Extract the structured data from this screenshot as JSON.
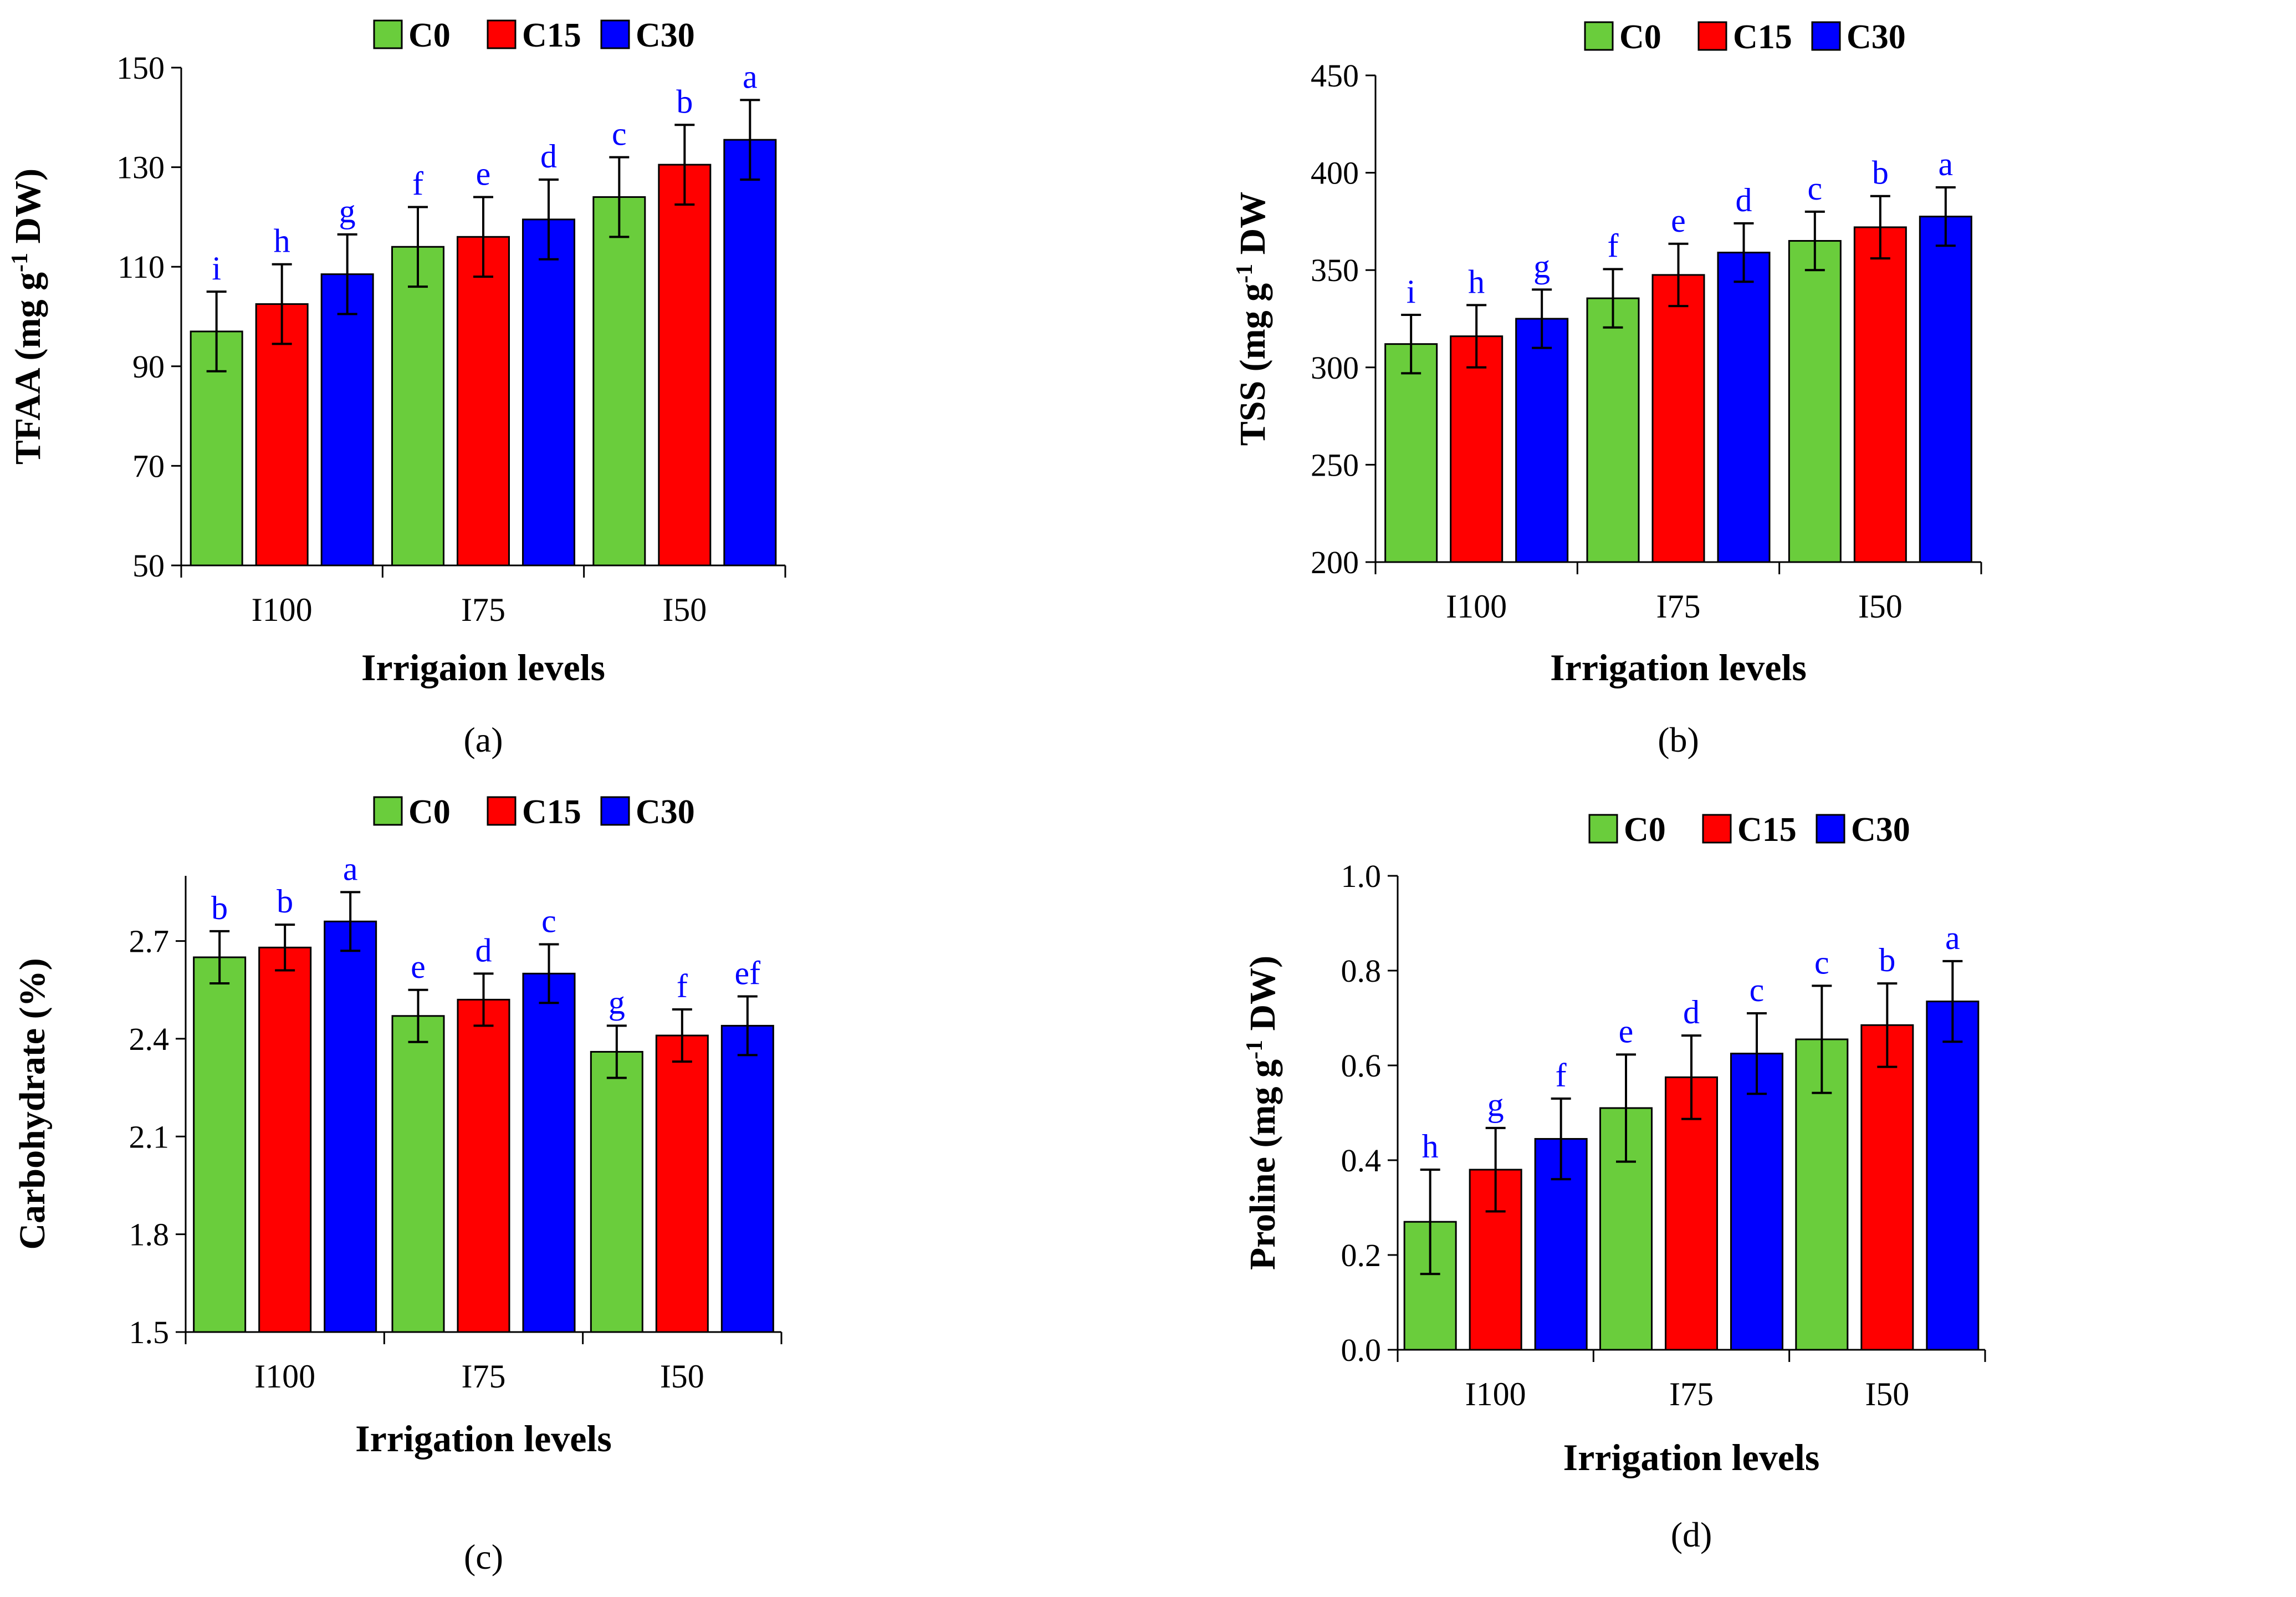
{
  "colors": {
    "C0": "#6ACD3C",
    "C15": "#FF0000",
    "C30": "#0000FF",
    "letters": "#0000FF",
    "axis": "#000000"
  },
  "chart_data": [
    {
      "type": "bar",
      "panel": "(a)",
      "ylabel": "TFAA (mg g-1 DW)",
      "ylabel_main": "TFAA (mg g",
      "ylabel_sup": "-1",
      "ylabel_tail": " DW)",
      "xlabel": "Irrigaion levels",
      "categories": [
        "I100",
        "I75",
        "I50"
      ],
      "ylim": [
        50,
        150
      ],
      "yticks": [
        50,
        70,
        90,
        110,
        130,
        150
      ],
      "ytick_labels": [
        "50",
        "70",
        "90",
        "110",
        "130",
        "150"
      ],
      "legend_position": "top",
      "series": [
        {
          "name": "C0",
          "values": [
            97,
            114,
            124
          ],
          "errors": [
            8,
            8,
            8
          ],
          "letters": [
            "i",
            "f",
            "c"
          ]
        },
        {
          "name": "C15",
          "values": [
            102.5,
            116,
            130.5
          ],
          "errors": [
            8,
            8,
            8
          ],
          "letters": [
            "h",
            "e",
            "b"
          ]
        },
        {
          "name": "C30",
          "values": [
            108.5,
            119.5,
            135.5
          ],
          "errors": [
            8,
            8,
            8
          ],
          "letters": [
            "g",
            "d",
            "a"
          ]
        }
      ]
    },
    {
      "type": "bar",
      "panel": "(b)",
      "ylabel": "TSS (mg g-1 DW",
      "ylabel_main": "TSS (mg g",
      "ylabel_sup": "-1",
      "ylabel_tail": " DW",
      "xlabel": "Irrigation levels",
      "categories": [
        "I100",
        "I75",
        "I50"
      ],
      "ylim": [
        200,
        450
      ],
      "yticks": [
        200,
        250,
        300,
        350,
        400,
        450
      ],
      "ytick_labels": [
        "200",
        "250",
        "300",
        "350",
        "400",
        "450"
      ],
      "legend_position": "top",
      "series": [
        {
          "name": "C0",
          "values": [
            312,
            335.5,
            365
          ],
          "errors": [
            15,
            15,
            15
          ],
          "letters": [
            "i",
            "f",
            "c"
          ]
        },
        {
          "name": "C15",
          "values": [
            316,
            347.5,
            372
          ],
          "errors": [
            16,
            16,
            16
          ],
          "letters": [
            "h",
            "e",
            "b"
          ]
        },
        {
          "name": "C30",
          "values": [
            325,
            359,
            377.5
          ],
          "errors": [
            15,
            15,
            15
          ],
          "letters": [
            "g",
            "d",
            "a"
          ]
        }
      ]
    },
    {
      "type": "bar",
      "panel": "(c)",
      "ylabel": "Carbohydrate (%)",
      "ylabel_main": "Carbohydrate (%)",
      "ylabel_sup": "",
      "ylabel_tail": "",
      "xlabel": "Irrigation levels",
      "categories": [
        "I100",
        "I75",
        "I50"
      ],
      "ylim": [
        1.5,
        2.9
      ],
      "yticks": [
        1.5,
        1.8,
        2.1,
        2.4,
        2.7
      ],
      "ytick_labels": [
        "1.5",
        "1.8",
        "2.1",
        "2.4",
        "2.7"
      ],
      "legend_position": "top",
      "series": [
        {
          "name": "C0",
          "values": [
            2.65,
            2.47,
            2.36
          ],
          "errors": [
            0.08,
            0.08,
            0.08
          ],
          "letters": [
            "b",
            "e",
            "g"
          ]
        },
        {
          "name": "C15",
          "values": [
            2.68,
            2.52,
            2.41
          ],
          "errors": [
            0.07,
            0.08,
            0.08
          ],
          "letters": [
            "b",
            "d",
            "f"
          ]
        },
        {
          "name": "C30",
          "values": [
            2.76,
            2.6,
            2.44
          ],
          "errors": [
            0.09,
            0.09,
            0.09
          ],
          "letters": [
            "a",
            "c",
            "ef"
          ]
        }
      ]
    },
    {
      "type": "bar",
      "panel": "(d)",
      "ylabel": "Proline (mg g-1 DW)",
      "ylabel_main": "Proline (mg g",
      "ylabel_sup": "-1",
      "ylabel_tail": " DW)",
      "xlabel": "Irrigation levels",
      "categories": [
        "I100",
        "I75",
        "I50"
      ],
      "ylim": [
        0,
        1
      ],
      "yticks": [
        0,
        0.2,
        0.4,
        0.6,
        0.8,
        1.0
      ],
      "ytick_labels": [
        "0.0",
        "0.2",
        "0.4",
        "0.6",
        "0.8",
        "1.0"
      ],
      "legend_position": "top",
      "series": [
        {
          "name": "C0",
          "values": [
            0.27,
            0.51,
            0.655
          ],
          "errors": [
            0.11,
            0.113,
            0.113
          ],
          "letters": [
            "h",
            "e",
            "c"
          ]
        },
        {
          "name": "C15",
          "values": [
            0.38,
            0.575,
            0.685
          ],
          "errors": [
            0.088,
            0.088,
            0.088
          ],
          "letters": [
            "g",
            "d",
            "b"
          ]
        },
        {
          "name": "C30",
          "values": [
            0.445,
            0.625,
            0.735
          ],
          "errors": [
            0.085,
            0.085,
            0.085
          ],
          "letters": [
            "f",
            "c",
            "a"
          ]
        }
      ]
    }
  ]
}
